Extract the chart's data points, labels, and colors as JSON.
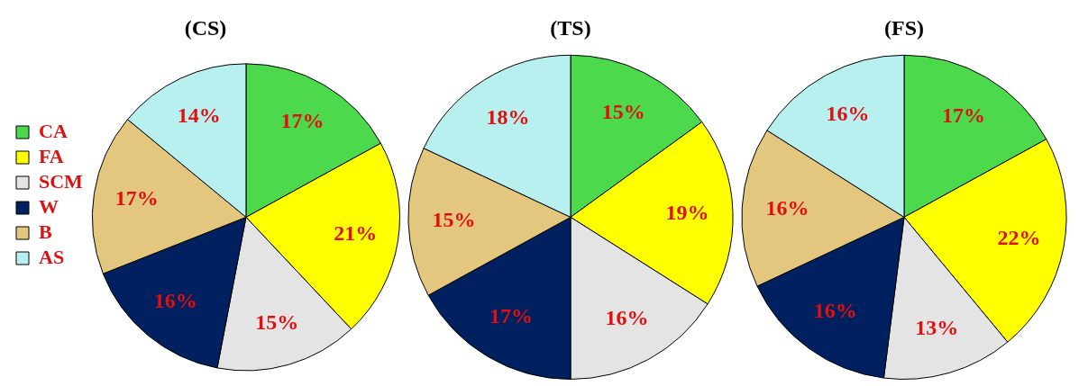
{
  "chart_data": [
    {
      "type": "pie",
      "title": "(CS)",
      "categories": [
        "CA",
        "FA",
        "SCM",
        "W",
        "B",
        "AS"
      ],
      "values": [
        17,
        21,
        15,
        16,
        17,
        14
      ],
      "value_labels": [
        "17%",
        "21%",
        "15%",
        "16%",
        "17%",
        "14%"
      ],
      "colors": [
        "#4cd94c",
        "#ffff00",
        "#e4e4e4",
        "#002060",
        "#e3c77f",
        "#b8f0f0"
      ],
      "legend": "left"
    },
    {
      "type": "pie",
      "title": "(TS)",
      "categories": [
        null,
        null,
        null,
        null,
        null,
        null
      ],
      "values": [
        15,
        19,
        16,
        17,
        15,
        18
      ],
      "value_labels": [
        "15%",
        "19%",
        "16%",
        "17%",
        "15%",
        "18%"
      ],
      "colors": [
        "#4cd94c",
        "#ffff00",
        "#e4e4e4",
        "#002060",
        "#e3c77f",
        "#b8f0f0"
      ]
    },
    {
      "type": "pie",
      "title": "(FS)",
      "categories": [
        null,
        null,
        null,
        null,
        null,
        null
      ],
      "values": [
        17,
        22,
        13,
        16,
        16,
        16
      ],
      "value_labels": [
        "17%",
        "22%",
        "13%",
        "16%",
        "16%",
        "16%"
      ],
      "colors": [
        "#4cd94c",
        "#ffff00",
        "#e4e4e4",
        "#002060",
        "#e3c77f",
        "#b8f0f0"
      ]
    }
  ]
}
